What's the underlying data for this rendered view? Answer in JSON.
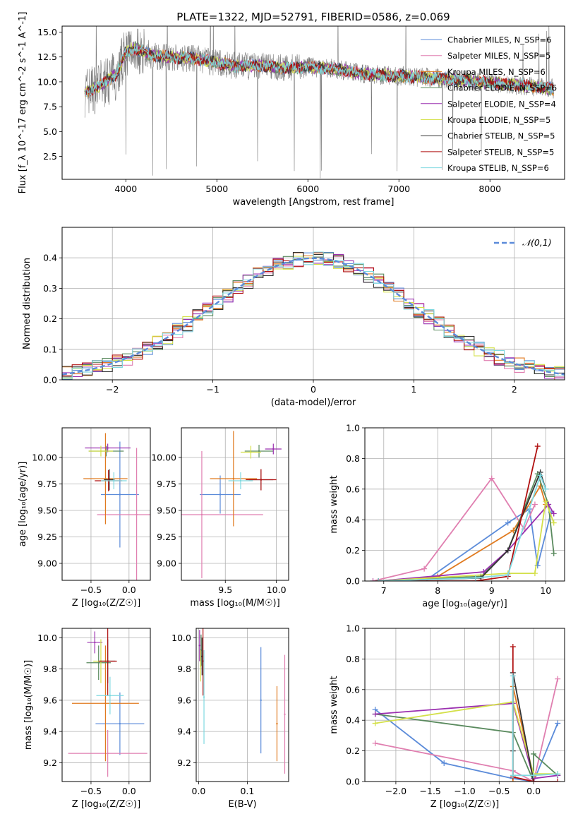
{
  "title": "PLATE=1322, MJD=52791, FIBERID=0586, z=0.069",
  "colors": {
    "Chabrier MILES": "#5b8bd9",
    "Salpeter MILES": "#e07fb0",
    "Kroupa MILES": "#e07a1f",
    "Chabrier ELODIE": "#5a8a5e",
    "Salpeter ELODIE": "#9b30b0",
    "Kroupa ELODIE": "#d4e04a",
    "Chabrier STELIB": "#333333",
    "Salpeter STELIB": "#b01010",
    "Kroupa STELIB": "#7fd9e0"
  },
  "chart_data": [
    {
      "type": "line",
      "name": "spectrum",
      "xlabel": "wavelength [Angstrom, rest frame]",
      "ylabel": "Flux [f_λ 10^-17 erg cm^-2 s^-1 A^-1]",
      "xlim": [
        3300,
        8820
      ],
      "ylim": [
        0.2,
        15.6
      ],
      "xticks": [
        4000,
        5000,
        6000,
        7000,
        8000
      ],
      "yticks": [
        2.5,
        5.0,
        7.5,
        10.0,
        12.5,
        15.0
      ],
      "legend": [
        "Chabrier MILES, N_SSP=6",
        "Salpeter MILES, N_SSP=5",
        "Kroupa MILES, N_SSP=6",
        "Chabrier ELODIE, N_SSP=6",
        "Salpeter ELODIE, N_SSP=4",
        "Kroupa ELODIE, N_SSP=5",
        "Chabrier STELIB, N_SSP=5",
        "Salpeter STELIB, N_SSP=5",
        "Kroupa STELIB, N_SSP=6"
      ],
      "legend_position": "top-right",
      "continuum": [
        [
          3550,
          9.0
        ],
        [
          3700,
          9.5
        ],
        [
          3900,
          10.8
        ],
        [
          4000,
          13.0
        ],
        [
          4100,
          13.4
        ],
        [
          4300,
          12.6
        ],
        [
          4500,
          12.5
        ],
        [
          4800,
          12.3
        ],
        [
          5000,
          11.9
        ],
        [
          5200,
          11.6
        ],
        [
          5500,
          11.6
        ],
        [
          5800,
          11.4
        ],
        [
          6000,
          11.5
        ],
        [
          6300,
          11.3
        ],
        [
          6600,
          10.8
        ],
        [
          7000,
          10.6
        ],
        [
          7500,
          10.3
        ],
        [
          8000,
          9.9
        ],
        [
          8500,
          9.5
        ],
        [
          8700,
          9.3
        ]
      ]
    },
    {
      "type": "line",
      "name": "residuals",
      "xlabel": "(data-model)/error",
      "ylabel": "Normed distribution",
      "xlim": [
        -2.5,
        2.5
      ],
      "ylim": [
        0,
        0.5
      ],
      "xticks": [
        -2,
        -1,
        0,
        1,
        2
      ],
      "yticks": [
        0.0,
        0.1,
        0.2,
        0.3,
        0.4
      ],
      "legend": [
        "𝒩(0,1)"
      ],
      "legend_position": "top-right"
    },
    {
      "type": "scatter",
      "name": "age-vs-Z",
      "xlabel": "Z [log₁₀(Z/Z☉)]",
      "ylabel": "age  [log₁₀(age/yr)]",
      "xlim": [
        -0.88,
        0.28
      ],
      "ylim": [
        8.84,
        10.28
      ],
      "xticks": [
        -0.5,
        0.0
      ],
      "yticks": [
        9.0,
        9.25,
        9.5,
        9.75,
        10.0
      ],
      "points": [
        {
          "series": "Chabrier MILES",
          "x": -0.12,
          "xerr": 0.25,
          "y": 9.65,
          "yerr": 0.5
        },
        {
          "series": "Salpeter MILES",
          "x": 0.1,
          "xerr": 0.52,
          "y": 9.46,
          "yerr": 0.63
        },
        {
          "series": "Kroupa MILES",
          "x": -0.31,
          "xerr": 0.29,
          "y": 9.8,
          "yerr": 0.43
        },
        {
          "series": "Chabrier ELODIE",
          "x": -0.3,
          "xerr": 0.23,
          "y": 10.06,
          "yerr": 0.05
        },
        {
          "series": "Salpeter ELODIE",
          "x": -0.28,
          "xerr": 0.3,
          "y": 10.09,
          "yerr": 0.04
        },
        {
          "series": "Kroupa ELODIE",
          "x": -0.37,
          "xerr": 0.16,
          "y": 10.06,
          "yerr": 0.05
        },
        {
          "series": "Chabrier STELIB",
          "x": -0.26,
          "xerr": 0.07,
          "y": 9.79,
          "yerr": 0.1
        },
        {
          "series": "Salpeter STELIB",
          "x": -0.27,
          "xerr": 0.18,
          "y": 9.78,
          "yerr": 0.1
        },
        {
          "series": "Kroupa STELIB",
          "x": -0.2,
          "xerr": 0.17,
          "y": 9.78,
          "yerr": 0.08
        }
      ]
    },
    {
      "type": "scatter",
      "name": "age-vs-mass",
      "xlabel": "mass [log₁₀(M/M☉)]",
      "ylabel": "",
      "xlim": [
        9.07,
        10.12
      ],
      "ylim": [
        8.84,
        10.28
      ],
      "xticks": [
        9.5,
        10.0
      ],
      "yticks": [
        9.0,
        9.25,
        9.5,
        9.75,
        10.0
      ],
      "points": [
        {
          "series": "Chabrier MILES",
          "x": 9.45,
          "xerr": 0.2,
          "y": 9.65,
          "yerr": 0.18
        },
        {
          "series": "Salpeter MILES",
          "x": 9.27,
          "xerr": 0.6,
          "y": 9.46,
          "yerr": 0.6
        },
        {
          "series": "Kroupa MILES",
          "x": 9.58,
          "xerr": 0.23,
          "y": 9.8,
          "yerr": 0.45
        },
        {
          "series": "Chabrier ELODIE",
          "x": 9.83,
          "xerr": 0.14,
          "y": 10.06,
          "yerr": 0.06
        },
        {
          "series": "Salpeter ELODIE",
          "x": 9.97,
          "xerr": 0.08,
          "y": 10.08,
          "yerr": 0.05
        },
        {
          "series": "Kroupa ELODIE",
          "x": 9.75,
          "xerr": 0.1,
          "y": 10.05,
          "yerr": 0.06
        },
        {
          "series": "Chabrier STELIB",
          "x": 9.85,
          "xerr": 0.12,
          "y": 9.79,
          "yerr": 0.1
        },
        {
          "series": "Salpeter STELIB",
          "x": 9.85,
          "xerr": 0.15,
          "y": 9.79,
          "yerr": 0.1
        },
        {
          "series": "Kroupa STELIB",
          "x": 9.65,
          "xerr": 0.12,
          "y": 9.78,
          "yerr": 0.08
        }
      ]
    },
    {
      "type": "line",
      "name": "mass-weight-vs-age",
      "xlabel": "age  [log₁₀(age/yr)]",
      "ylabel": "mass weight",
      "xlim": [
        6.65,
        10.35
      ],
      "ylim": [
        0,
        1.0
      ],
      "xticks": [
        7,
        8,
        9,
        10
      ],
      "yticks": [
        0.0,
        0.2,
        0.4,
        0.6,
        0.8,
        1.0
      ],
      "series": [
        {
          "name": "Chabrier MILES",
          "x": [
            6.8,
            7.8,
            9.3,
            9.7,
            9.85,
            10.1
          ],
          "values": [
            0.0,
            0.01,
            0.38,
            0.47,
            0.1,
            0.45
          ]
        },
        {
          "name": "Salpeter MILES",
          "x": [
            6.8,
            7.75,
            9.0,
            9.6,
            9.8
          ],
          "values": [
            0.0,
            0.08,
            0.67,
            0.34,
            0.5
          ]
        },
        {
          "name": "Kroupa MILES",
          "x": [
            6.9,
            8.0,
            9.4,
            9.9,
            10.0
          ],
          "values": [
            0.0,
            0.03,
            0.33,
            0.62,
            0.5
          ]
        },
        {
          "name": "Chabrier ELODIE",
          "x": [
            6.9,
            8.8,
            9.3,
            9.85,
            10.05,
            10.15
          ],
          "values": [
            0.0,
            0.03,
            0.2,
            0.7,
            0.5,
            0.18
          ]
        },
        {
          "name": "Salpeter ELODIE",
          "x": [
            6.9,
            8.85,
            9.3,
            10.05,
            10.15
          ],
          "values": [
            0.0,
            0.06,
            0.2,
            0.5,
            0.44
          ]
        },
        {
          "name": "Kroupa ELODIE",
          "x": [
            6.9,
            9.3,
            9.8,
            10.0,
            10.15
          ],
          "values": [
            0.0,
            0.05,
            0.05,
            0.52,
            0.38
          ]
        },
        {
          "name": "Chabrier STELIB",
          "x": [
            6.9,
            8.8,
            9.3,
            9.9,
            10.0
          ],
          "values": [
            0.0,
            0.02,
            0.2,
            0.71,
            0.6
          ]
        },
        {
          "name": "Salpeter STELIB",
          "x": [
            6.9,
            8.7,
            9.3,
            9.85
          ],
          "values": [
            0.0,
            0.0,
            0.03,
            0.88
          ]
        },
        {
          "name": "Kroupa STELIB",
          "x": [
            6.9,
            8.7,
            9.3,
            9.9,
            10.0
          ],
          "values": [
            0.0,
            0.02,
            0.04,
            0.69,
            0.6
          ]
        }
      ]
    },
    {
      "type": "scatter",
      "name": "mass-vs-Z",
      "xlabel": "Z [log₁₀(Z/Z☉)]",
      "ylabel": "mass [log₁₀(M/M☉)]",
      "xlim": [
        -0.88,
        0.28
      ],
      "ylim": [
        9.08,
        10.06
      ],
      "xticks": [
        -0.5,
        0.0
      ],
      "yticks": [
        9.2,
        9.4,
        9.6,
        9.8,
        10.0
      ],
      "points": [
        {
          "series": "Chabrier MILES",
          "x": -0.12,
          "xerr": 0.32,
          "y": 9.45,
          "yerr": 0.2
        },
        {
          "series": "Salpeter MILES",
          "x": -0.28,
          "xerr": 0.52,
          "y": 9.26,
          "yerr": 0.15
        },
        {
          "series": "Kroupa MILES",
          "x": -0.31,
          "xerr": 0.44,
          "y": 9.58,
          "yerr": 0.37
        },
        {
          "series": "Chabrier ELODIE",
          "x": -0.4,
          "xerr": 0.16,
          "y": 9.84,
          "yerr": 0.11
        },
        {
          "series": "Salpeter ELODIE",
          "x": -0.45,
          "xerr": 0.1,
          "y": 9.97,
          "yerr": 0.07
        },
        {
          "series": "Kroupa ELODIE",
          "x": -0.37,
          "xerr": 0.1,
          "y": 9.85,
          "yerr": 0.14
        },
        {
          "series": "Chabrier STELIB",
          "x": -0.28,
          "xerr": 0.1,
          "y": 9.85,
          "yerr": 0.14
        },
        {
          "series": "Salpeter STELIB",
          "x": -0.28,
          "xerr": 0.12,
          "y": 9.85,
          "yerr": 0.22
        },
        {
          "series": "Kroupa STELIB",
          "x": -0.25,
          "xerr": 0.18,
          "y": 9.63,
          "yerr": 0.12
        }
      ]
    },
    {
      "type": "scatter",
      "name": "mass-vs-EBV",
      "xlabel": "E(B-V)",
      "ylabel": "",
      "xlim": [
        -0.005,
        0.185
      ],
      "ylim": [
        9.08,
        10.06
      ],
      "xticks": [
        0.0,
        0.1
      ],
      "yticks": [
        9.2,
        9.4,
        9.6,
        9.8,
        10.0
      ],
      "points": [
        {
          "series": "Chabrier MILES",
          "x": 0.128,
          "y": 9.6,
          "yerr": 0.34
        },
        {
          "series": "Salpeter MILES",
          "x": 0.177,
          "y": 9.51,
          "yerr": 0.38
        },
        {
          "series": "Kroupa MILES",
          "x": 0.161,
          "y": 9.45,
          "yerr": 0.24
        },
        {
          "series": "Chabrier ELODIE",
          "x": 0.005,
          "y": 9.92,
          "yerr": 0.1
        },
        {
          "series": "Salpeter ELODIE",
          "x": 0.002,
          "y": 9.95,
          "yerr": 0.1
        },
        {
          "series": "Kroupa ELODIE",
          "x": 0.004,
          "y": 9.82,
          "yerr": 0.1
        },
        {
          "series": "Chabrier STELIB",
          "x": 0.007,
          "y": 9.88,
          "yerr": 0.12
        },
        {
          "series": "Salpeter STELIB",
          "x": 0.009,
          "y": 9.85,
          "yerr": 0.22
        },
        {
          "series": "Kroupa STELIB",
          "x": 0.011,
          "y": 9.62,
          "yerr": 0.3
        }
      ]
    },
    {
      "type": "line",
      "name": "mass-weight-vs-Z",
      "xlabel": "Z [log₁₀(Z/Z☉)]",
      "ylabel": "mass weight",
      "xlim": [
        -2.45,
        0.45
      ],
      "ylim": [
        0,
        1.0
      ],
      "xticks": [
        -2.0,
        -1.5,
        -1.0,
        -0.5,
        0.0
      ],
      "yticks": [
        0.0,
        0.2,
        0.4,
        0.6,
        0.8,
        1.0
      ],
      "series": [
        {
          "name": "Chabrier MILES",
          "x": [
            -2.3,
            -1.3,
            -0.3,
            0.0,
            0.35
          ],
          "values": [
            0.47,
            0.12,
            0.02,
            0.0,
            0.38
          ]
        },
        {
          "name": "Salpeter MILES",
          "x": [
            -2.3,
            -0.3,
            0.0,
            0.35
          ],
          "values": [
            0.25,
            0.07,
            0.0,
            0.67
          ]
        },
        {
          "name": "Kroupa MILES",
          "x": [
            -0.3,
            -0.3,
            0.0,
            0.0
          ],
          "values": [
            0.0,
            0.62,
            0.03,
            0.0
          ]
        },
        {
          "name": "Chabrier ELODIE",
          "x": [
            -2.3,
            -0.3,
            0.0,
            0.0,
            0.35
          ],
          "values": [
            0.44,
            0.32,
            0.0,
            0.18,
            0.04
          ]
        },
        {
          "name": "Salpeter ELODIE",
          "x": [
            -2.3,
            -0.3,
            0.0,
            0.35
          ],
          "values": [
            0.44,
            0.51,
            0.02,
            0.04
          ]
        },
        {
          "name": "Kroupa ELODIE",
          "x": [
            -2.3,
            -0.3,
            0.0,
            0.35
          ],
          "values": [
            0.38,
            0.52,
            0.05,
            0.05
          ]
        },
        {
          "name": "Chabrier STELIB",
          "x": [
            -0.3,
            -0.3,
            0.0
          ],
          "values": [
            0.2,
            0.71,
            0.0
          ]
        },
        {
          "name": "Salpeter STELIB",
          "x": [
            -0.3,
            -0.3,
            0.0,
            0.35
          ],
          "values": [
            0.88,
            0.03,
            0.0,
            0.0
          ]
        },
        {
          "name": "Kroupa STELIB",
          "x": [
            -0.3,
            -0.3,
            0.0,
            0.35
          ],
          "values": [
            0.69,
            0.04,
            0.04,
            0.05
          ]
        }
      ]
    }
  ]
}
